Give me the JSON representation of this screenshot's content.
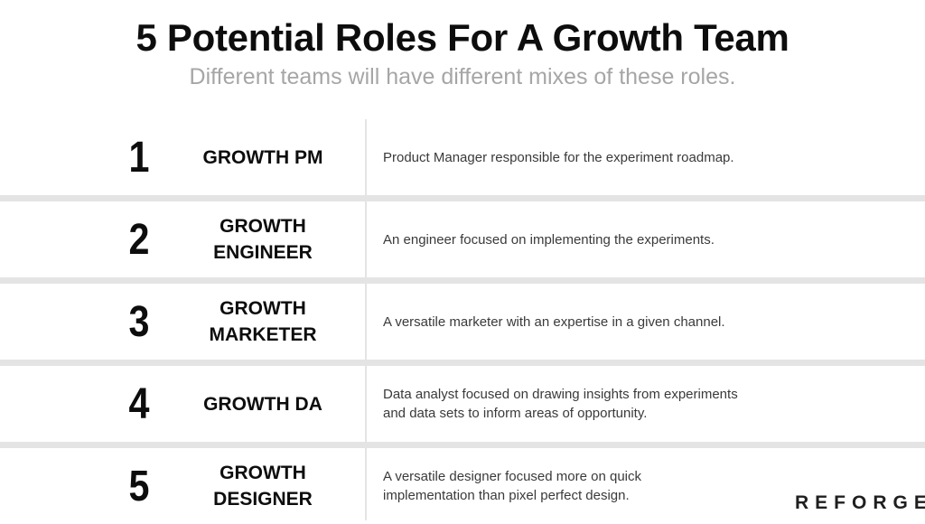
{
  "header": {
    "title": "5 Potential Roles For A Growth Team",
    "subtitle": "Different teams will have different mixes of these roles."
  },
  "roles": [
    {
      "number": "1",
      "name": "GROWTH PM",
      "description": "Product Manager responsible for the experiment roadmap."
    },
    {
      "number": "2",
      "name": "GROWTH\nENGINEER",
      "description": "An engineer focused on implementing the experiments."
    },
    {
      "number": "3",
      "name": "GROWTH\nMARKETER",
      "description": "A versatile marketer with an expertise in a given channel."
    },
    {
      "number": "4",
      "name": "GROWTH DA",
      "description": "Data analyst focused on drawing insights from experiments\nand data sets to inform areas of opportunity."
    },
    {
      "number": "5",
      "name": "GROWTH\nDESIGNER",
      "description": "A versatile designer focused more on quick\nimplementation than pixel perfect design."
    }
  ],
  "logo": {
    "text": "REFORGE"
  },
  "colors": {
    "title": "#0d0d0d",
    "subtitle": "#a6a6a6",
    "divider": "#e4e4e4",
    "description": "#3a3a3a"
  }
}
